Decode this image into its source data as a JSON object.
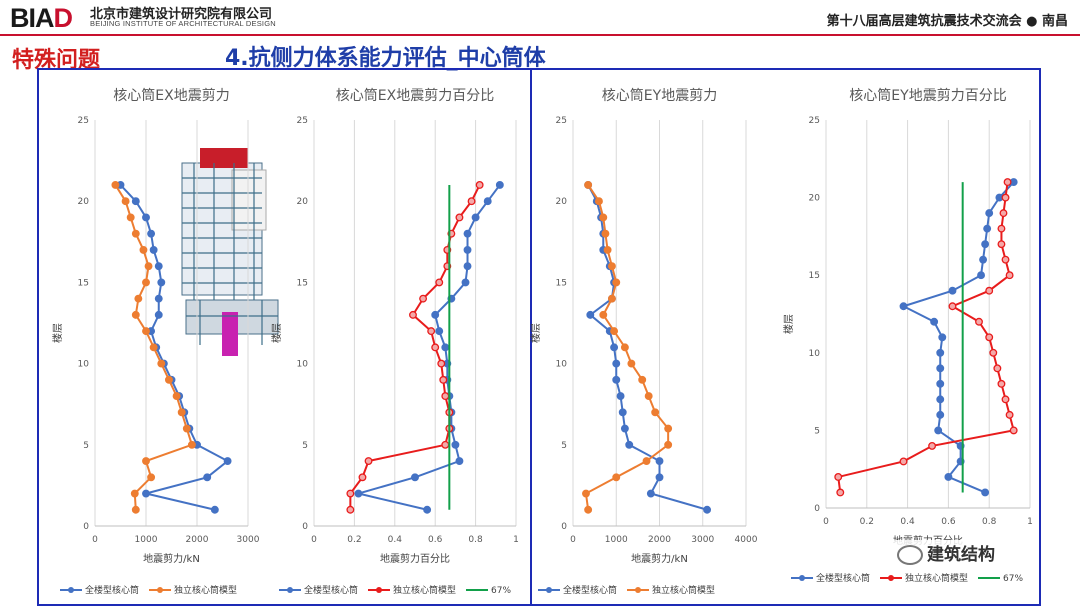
{
  "header": {
    "logo_main": "BIA",
    "logo_accent": "D",
    "org_cn": "北京市建筑设计研究院有限公司",
    "org_en": "BEIJING INSTITUTE OF ARCHITECTURAL DESIGN",
    "conference": "第十八届高层建筑抗震技术交流会 ● 南昌"
  },
  "section": "特殊问题",
  "slide_title": "4.抗侧力体系能力评估_中心筒体",
  "watermark": "建筑结构",
  "colors": {
    "blue": "#4472c4",
    "orange": "#ed7d31",
    "red": "#e81c1c",
    "green": "#12a04a",
    "frame": "#1d2bb5",
    "accent": "#c8102e"
  },
  "chart_data": [
    {
      "type": "line",
      "title": "核心筒EX地震剪力",
      "xlabel": "地震剪力/kN",
      "ylabel": "楼层",
      "xlim": [
        0,
        3000
      ],
      "xticks": [
        0,
        1000,
        2000,
        3000
      ],
      "ylim": [
        0,
        25
      ],
      "yticks": [
        0,
        5,
        10,
        15,
        20,
        25
      ],
      "grid": "vertical",
      "legend_position": "bottom",
      "series": [
        {
          "name": "全楼型核心筒",
          "color": "#4472c4",
          "points": [
            [
              2350,
              1
            ],
            [
              1000,
              2
            ],
            [
              2200,
              3
            ],
            [
              2600,
              4
            ],
            [
              2000,
              5
            ],
            [
              1850,
              6
            ],
            [
              1750,
              7
            ],
            [
              1650,
              8
            ],
            [
              1500,
              9
            ],
            [
              1350,
              10
            ],
            [
              1200,
              11
            ],
            [
              1100,
              12
            ],
            [
              1250,
              13
            ],
            [
              1250,
              14
            ],
            [
              1300,
              15
            ],
            [
              1250,
              16
            ],
            [
              1150,
              17
            ],
            [
              1100,
              18
            ],
            [
              1000,
              19
            ],
            [
              800,
              20
            ],
            [
              500,
              21
            ]
          ]
        },
        {
          "name": "独立核心筒模型",
          "color": "#ed7d31",
          "points": [
            [
              800,
              1
            ],
            [
              780,
              2
            ],
            [
              1100,
              3
            ],
            [
              1000,
              4
            ],
            [
              1900,
              5
            ],
            [
              1800,
              6
            ],
            [
              1700,
              7
            ],
            [
              1600,
              8
            ],
            [
              1450,
              9
            ],
            [
              1300,
              10
            ],
            [
              1150,
              11
            ],
            [
              1000,
              12
            ],
            [
              800,
              13
            ],
            [
              850,
              14
            ],
            [
              1000,
              15
            ],
            [
              1050,
              16
            ],
            [
              950,
              17
            ],
            [
              800,
              18
            ],
            [
              700,
              19
            ],
            [
              600,
              20
            ],
            [
              400,
              21
            ]
          ]
        }
      ]
    },
    {
      "type": "line",
      "title": "核心筒EX地震剪力百分比",
      "xlabel": "地震剪力百分比",
      "ylabel": "楼层",
      "xlim": [
        0,
        1
      ],
      "xticks": [
        0,
        0.2,
        0.4,
        0.6,
        0.8,
        1
      ],
      "ylim": [
        0,
        25
      ],
      "yticks": [
        0,
        5,
        10,
        15,
        20,
        25
      ],
      "grid": "vertical",
      "legend_position": "bottom",
      "series": [
        {
          "name": "全楼型核心筒",
          "color": "#4472c4",
          "points": [
            [
              0.56,
              1
            ],
            [
              0.22,
              2
            ],
            [
              0.5,
              3
            ],
            [
              0.72,
              4
            ],
            [
              0.7,
              5
            ],
            [
              0.68,
              6
            ],
            [
              0.68,
              7
            ],
            [
              0.67,
              8
            ],
            [
              0.66,
              9
            ],
            [
              0.66,
              10
            ],
            [
              0.65,
              11
            ],
            [
              0.62,
              12
            ],
            [
              0.6,
              13
            ],
            [
              0.68,
              14
            ],
            [
              0.75,
              15
            ],
            [
              0.76,
              16
            ],
            [
              0.76,
              17
            ],
            [
              0.76,
              18
            ],
            [
              0.8,
              19
            ],
            [
              0.86,
              20
            ],
            [
              0.92,
              21
            ]
          ]
        },
        {
          "name": "独立核心筒模型",
          "color": "#e81c1c",
          "points": [
            [
              0.18,
              1
            ],
            [
              0.18,
              2
            ],
            [
              0.24,
              3
            ],
            [
              0.27,
              4
            ],
            [
              0.65,
              5
            ],
            [
              0.67,
              6
            ],
            [
              0.67,
              7
            ],
            [
              0.65,
              8
            ],
            [
              0.64,
              9
            ],
            [
              0.63,
              10
            ],
            [
              0.6,
              11
            ],
            [
              0.58,
              12
            ],
            [
              0.49,
              13
            ],
            [
              0.54,
              14
            ],
            [
              0.62,
              15
            ],
            [
              0.66,
              16
            ],
            [
              0.66,
              17
            ],
            [
              0.68,
              18
            ],
            [
              0.72,
              19
            ],
            [
              0.78,
              20
            ],
            [
              0.82,
              21
            ]
          ]
        },
        {
          "name": "67%",
          "color": "#12a04a",
          "points": [
            [
              0.67,
              1
            ],
            [
              0.67,
              21
            ]
          ]
        }
      ]
    },
    {
      "type": "line",
      "title": "核心筒EY地震剪力",
      "xlabel": "地震剪力/kN",
      "ylabel": "楼层",
      "xlim": [
        0,
        4000
      ],
      "xticks": [
        0,
        1000,
        2000,
        3000,
        4000
      ],
      "ylim": [
        0,
        25
      ],
      "yticks": [
        0,
        5,
        10,
        15,
        20,
        25
      ],
      "grid": "vertical",
      "legend_position": "bottom",
      "series": [
        {
          "name": "全楼型核心筒",
          "color": "#4472c4",
          "points": [
            [
              3100,
              1
            ],
            [
              1800,
              2
            ],
            [
              2000,
              3
            ],
            [
              2000,
              4
            ],
            [
              1300,
              5
            ],
            [
              1200,
              6
            ],
            [
              1150,
              7
            ],
            [
              1100,
              8
            ],
            [
              1000,
              9
            ],
            [
              1000,
              10
            ],
            [
              950,
              11
            ],
            [
              850,
              12
            ],
            [
              400,
              13
            ],
            [
              900,
              14
            ],
            [
              950,
              15
            ],
            [
              850,
              16
            ],
            [
              700,
              17
            ],
            [
              700,
              18
            ],
            [
              650,
              19
            ],
            [
              550,
              20
            ],
            [
              350,
              21
            ]
          ]
        },
        {
          "name": "独立核心筒模型",
          "color": "#ed7d31",
          "points": [
            [
              350,
              1
            ],
            [
              300,
              2
            ],
            [
              1000,
              3
            ],
            [
              1700,
              4
            ],
            [
              2200,
              5
            ],
            [
              2200,
              6
            ],
            [
              1900,
              7
            ],
            [
              1750,
              8
            ],
            [
              1600,
              9
            ],
            [
              1350,
              10
            ],
            [
              1200,
              11
            ],
            [
              950,
              12
            ],
            [
              700,
              13
            ],
            [
              900,
              14
            ],
            [
              1000,
              15
            ],
            [
              900,
              16
            ],
            [
              800,
              17
            ],
            [
              750,
              18
            ],
            [
              700,
              19
            ],
            [
              600,
              20
            ],
            [
              350,
              21
            ]
          ]
        }
      ]
    },
    {
      "type": "line",
      "title": "核心筒EY地震剪力百分比",
      "xlabel": "地震剪力百分比",
      "ylabel": "楼层",
      "xlim": [
        0,
        1
      ],
      "xticks": [
        0,
        0.2,
        0.4,
        0.6,
        0.8,
        1
      ],
      "ylim": [
        0,
        25
      ],
      "yticks": [
        0,
        5,
        10,
        15,
        20,
        25
      ],
      "grid": "vertical",
      "legend_position": "bottom",
      "series": [
        {
          "name": "全楼型核心筒",
          "color": "#4472c4",
          "points": [
            [
              0.78,
              1
            ],
            [
              0.6,
              2
            ],
            [
              0.66,
              3
            ],
            [
              0.66,
              4
            ],
            [
              0.55,
              5
            ],
            [
              0.56,
              6
            ],
            [
              0.56,
              7
            ],
            [
              0.56,
              8
            ],
            [
              0.56,
              9
            ],
            [
              0.56,
              10
            ],
            [
              0.57,
              11
            ],
            [
              0.53,
              12
            ],
            [
              0.38,
              13
            ],
            [
              0.62,
              14
            ],
            [
              0.76,
              15
            ],
            [
              0.77,
              16
            ],
            [
              0.78,
              17
            ],
            [
              0.79,
              18
            ],
            [
              0.8,
              19
            ],
            [
              0.85,
              20
            ],
            [
              0.92,
              21
            ]
          ]
        },
        {
          "name": "独立核心筒模型",
          "color": "#e81c1c",
          "points": [
            [
              0.07,
              1
            ],
            [
              0.06,
              2
            ],
            [
              0.38,
              3
            ],
            [
              0.52,
              4
            ],
            [
              0.92,
              5
            ],
            [
              0.9,
              6
            ],
            [
              0.88,
              7
            ],
            [
              0.86,
              8
            ],
            [
              0.84,
              9
            ],
            [
              0.82,
              10
            ],
            [
              0.8,
              11
            ],
            [
              0.75,
              12
            ],
            [
              0.62,
              13
            ],
            [
              0.8,
              14
            ],
            [
              0.9,
              15
            ],
            [
              0.88,
              16
            ],
            [
              0.86,
              17
            ],
            [
              0.86,
              18
            ],
            [
              0.87,
              19
            ],
            [
              0.88,
              20
            ],
            [
              0.89,
              21
            ]
          ]
        },
        {
          "name": "67%",
          "color": "#12a04a",
          "points": [
            [
              0.67,
              1
            ],
            [
              0.67,
              21
            ]
          ]
        }
      ]
    }
  ]
}
